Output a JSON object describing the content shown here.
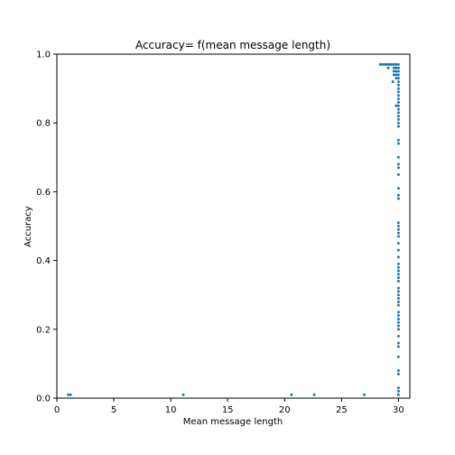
{
  "chart_data": {
    "type": "scatter",
    "title": "Accuracy= f(mean message length)",
    "xlabel": "Mean message length",
    "ylabel": "Accuracy",
    "xlim": [
      0,
      31
    ],
    "ylim": [
      0,
      1.0
    ],
    "xticks": [
      0,
      5,
      10,
      15,
      20,
      25,
      30
    ],
    "yticks": [
      0.0,
      0.2,
      0.4,
      0.6,
      0.8,
      1.0
    ],
    "xtick_labels": [
      "0",
      "5",
      "10",
      "15",
      "20",
      "25",
      "30"
    ],
    "ytick_labels": [
      "0.0",
      "0.2",
      "0.4",
      "0.6",
      "0.8",
      "1.0"
    ],
    "grid": false,
    "marker_color": "#1f77b4",
    "points": [
      [
        1.0,
        0.01
      ],
      [
        1.2,
        0.01
      ],
      [
        11.1,
        0.01
      ],
      [
        20.6,
        0.01
      ],
      [
        22.6,
        0.01
      ],
      [
        27.0,
        0.01
      ],
      [
        28.4,
        0.97
      ],
      [
        28.6,
        0.97
      ],
      [
        28.8,
        0.97
      ],
      [
        29.0,
        0.97
      ],
      [
        29.2,
        0.97
      ],
      [
        29.4,
        0.97
      ],
      [
        29.6,
        0.97
      ],
      [
        29.8,
        0.97
      ],
      [
        30.0,
        0.97
      ],
      [
        29.1,
        0.96
      ],
      [
        29.6,
        0.96
      ],
      [
        29.8,
        0.96
      ],
      [
        30.0,
        0.96
      ],
      [
        29.6,
        0.95
      ],
      [
        29.8,
        0.95
      ],
      [
        30.0,
        0.95
      ],
      [
        29.6,
        0.94
      ],
      [
        29.8,
        0.94
      ],
      [
        30.0,
        0.94
      ],
      [
        29.8,
        0.93
      ],
      [
        30.0,
        0.93
      ],
      [
        29.5,
        0.92
      ],
      [
        30.0,
        0.92
      ],
      [
        30.0,
        0.91
      ],
      [
        30.0,
        0.9
      ],
      [
        30.0,
        0.89
      ],
      [
        30.0,
        0.88
      ],
      [
        30.0,
        0.87
      ],
      [
        30.0,
        0.86
      ],
      [
        29.8,
        0.85
      ],
      [
        30.0,
        0.85
      ],
      [
        30.0,
        0.84
      ],
      [
        30.0,
        0.83
      ],
      [
        30.0,
        0.82
      ],
      [
        30.0,
        0.81
      ],
      [
        30.0,
        0.8
      ],
      [
        30.0,
        0.79
      ],
      [
        30.0,
        0.75
      ],
      [
        30.0,
        0.74
      ],
      [
        30.0,
        0.7
      ],
      [
        30.0,
        0.68
      ],
      [
        30.0,
        0.67
      ],
      [
        30.0,
        0.65
      ],
      [
        30.0,
        0.61
      ],
      [
        30.0,
        0.59
      ],
      [
        30.0,
        0.58
      ],
      [
        30.0,
        0.51
      ],
      [
        30.0,
        0.5
      ],
      [
        30.0,
        0.49
      ],
      [
        30.0,
        0.48
      ],
      [
        30.0,
        0.47
      ],
      [
        30.0,
        0.45
      ],
      [
        30.0,
        0.43
      ],
      [
        30.0,
        0.41
      ],
      [
        30.0,
        0.39
      ],
      [
        30.0,
        0.38
      ],
      [
        30.0,
        0.37
      ],
      [
        30.0,
        0.36
      ],
      [
        30.0,
        0.35
      ],
      [
        30.0,
        0.34
      ],
      [
        30.0,
        0.32
      ],
      [
        30.0,
        0.31
      ],
      [
        30.0,
        0.3
      ],
      [
        30.0,
        0.29
      ],
      [
        30.0,
        0.28
      ],
      [
        30.0,
        0.27
      ],
      [
        30.0,
        0.25
      ],
      [
        30.0,
        0.24
      ],
      [
        30.0,
        0.23
      ],
      [
        30.0,
        0.22
      ],
      [
        30.0,
        0.21
      ],
      [
        30.0,
        0.2
      ],
      [
        30.0,
        0.18
      ],
      [
        30.0,
        0.16
      ],
      [
        30.0,
        0.15
      ],
      [
        30.0,
        0.12
      ],
      [
        30.0,
        0.08
      ],
      [
        30.0,
        0.07
      ],
      [
        30.0,
        0.03
      ],
      [
        30.0,
        0.02
      ],
      [
        30.0,
        0.01
      ]
    ]
  }
}
